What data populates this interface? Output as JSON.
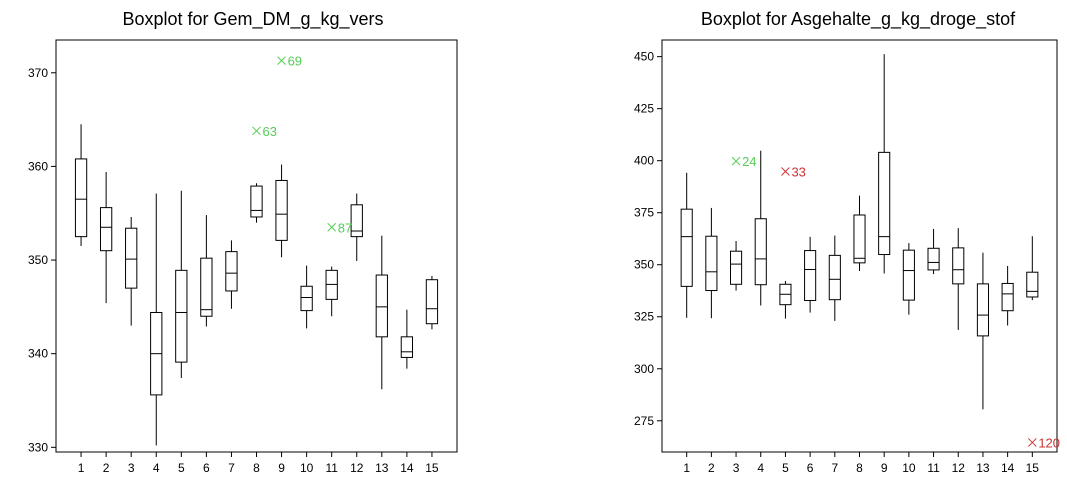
{
  "chart_data": [
    {
      "type": "boxplot",
      "title": "Boxplot for Gem_DM_g_kg_vers",
      "xlabel": "",
      "ylabel": "",
      "categories": [
        "1",
        "2",
        "3",
        "4",
        "5",
        "6",
        "7",
        "8",
        "9",
        "10",
        "11",
        "12",
        "13",
        "14",
        "15"
      ],
      "ylim": [
        329.5,
        373.5
      ],
      "yticks": [
        330,
        340,
        350,
        360,
        370
      ],
      "grid": false,
      "boxes": [
        {
          "min": 351.5,
          "q1": 352.5,
          "median": 356.5,
          "q3": 360.8,
          "max": 364.5
        },
        {
          "min": 345.4,
          "q1": 351.0,
          "median": 353.5,
          "q3": 355.6,
          "max": 359.4
        },
        {
          "min": 343.0,
          "q1": 347.0,
          "median": 350.1,
          "q3": 353.4,
          "max": 354.6
        },
        {
          "min": 330.2,
          "q1": 335.6,
          "median": 340.0,
          "q3": 344.4,
          "max": 357.1
        },
        {
          "min": 337.4,
          "q1": 339.1,
          "median": 344.4,
          "q3": 348.9,
          "max": 357.4
        },
        {
          "min": 342.9,
          "q1": 344.0,
          "median": 344.7,
          "q3": 350.2,
          "max": 354.8
        },
        {
          "min": 344.8,
          "q1": 346.7,
          "median": 348.6,
          "q3": 350.9,
          "max": 352.1
        },
        {
          "min": 354.0,
          "q1": 354.6,
          "median": 355.3,
          "q3": 357.9,
          "max": 358.2
        },
        {
          "min": 350.3,
          "q1": 352.1,
          "median": 354.9,
          "q3": 358.5,
          "max": 360.2
        },
        {
          "min": 342.7,
          "q1": 344.6,
          "median": 346.0,
          "q3": 347.2,
          "max": 349.4
        },
        {
          "min": 344.0,
          "q1": 345.8,
          "median": 347.4,
          "q3": 348.9,
          "max": 349.3
        },
        {
          "min": 349.9,
          "q1": 352.5,
          "median": 353.1,
          "q3": 355.9,
          "max": 357.1
        },
        {
          "min": 336.2,
          "q1": 341.8,
          "median": 345.0,
          "q3": 348.4,
          "max": 352.6
        },
        {
          "min": 338.4,
          "q1": 339.6,
          "median": 340.2,
          "q3": 341.8,
          "max": 344.7
        },
        {
          "min": 342.6,
          "q1": 343.2,
          "median": 344.8,
          "q3": 347.9,
          "max": 348.3
        }
      ],
      "outliers": [
        {
          "x": "9",
          "y": 371.3,
          "label": "69",
          "color": "#55cc55"
        },
        {
          "x": "8",
          "y": 363.8,
          "label": "63",
          "color": "#55cc55"
        },
        {
          "x": "11",
          "y": 353.5,
          "label": "87",
          "color": "#55cc55"
        }
      ]
    },
    {
      "type": "boxplot",
      "title": "Boxplot for Asgehalte_g_kg_droge_stof",
      "xlabel": "",
      "ylabel": "",
      "categories": [
        "1",
        "2",
        "3",
        "4",
        "5",
        "6",
        "7",
        "8",
        "9",
        "10",
        "11",
        "12",
        "13",
        "14",
        "15"
      ],
      "ylim": [
        260,
        458
      ],
      "yticks": [
        275,
        300,
        325,
        350,
        375,
        400,
        425,
        450
      ],
      "grid": false,
      "boxes": [
        {
          "min": 324.5,
          "q1": 339.6,
          "median": 363.5,
          "q3": 376.7,
          "max": 394.2
        },
        {
          "min": 324.3,
          "q1": 337.6,
          "median": 346.6,
          "q3": 363.7,
          "max": 377.3
        },
        {
          "min": 337.6,
          "q1": 340.6,
          "median": 350.3,
          "q3": 356.5,
          "max": 361.4
        },
        {
          "min": 330.4,
          "q1": 340.4,
          "median": 352.8,
          "q3": 372.1,
          "max": 404.8
        },
        {
          "min": 324.1,
          "q1": 330.8,
          "median": 335.8,
          "q3": 340.6,
          "max": 342.2
        },
        {
          "min": 327.0,
          "q1": 332.8,
          "median": 347.7,
          "q3": 356.8,
          "max": 363.4
        },
        {
          "min": 323.0,
          "q1": 333.2,
          "median": 343.0,
          "q3": 354.5,
          "max": 364.0
        },
        {
          "min": 347.0,
          "q1": 350.9,
          "median": 353.1,
          "q3": 373.9,
          "max": 383.2
        },
        {
          "min": 345.8,
          "q1": 354.9,
          "median": 363.5,
          "q3": 404.0,
          "max": 451.2
        },
        {
          "min": 326.0,
          "q1": 333.0,
          "median": 347.2,
          "q3": 357.0,
          "max": 360.4
        },
        {
          "min": 345.5,
          "q1": 347.5,
          "median": 351.1,
          "q3": 357.9,
          "max": 367.2
        },
        {
          "min": 318.7,
          "q1": 340.8,
          "median": 347.6,
          "q3": 358.1,
          "max": 367.6
        },
        {
          "min": 280.5,
          "q1": 315.8,
          "median": 325.8,
          "q3": 340.8,
          "max": 355.8
        },
        {
          "min": 320.8,
          "q1": 327.9,
          "median": 336.0,
          "q3": 341.0,
          "max": 349.4
        },
        {
          "min": 333.0,
          "q1": 334.5,
          "median": 337.2,
          "q3": 346.4,
          "max": 363.7
        }
      ],
      "outliers": [
        {
          "x": "3",
          "y": 399.8,
          "label": "24",
          "color": "#55cc55"
        },
        {
          "x": "5",
          "y": 394.8,
          "label": "33",
          "color": "#cc3333"
        },
        {
          "x": "15",
          "y": 264.6,
          "label": "120",
          "color": "#cc3333"
        }
      ]
    }
  ]
}
